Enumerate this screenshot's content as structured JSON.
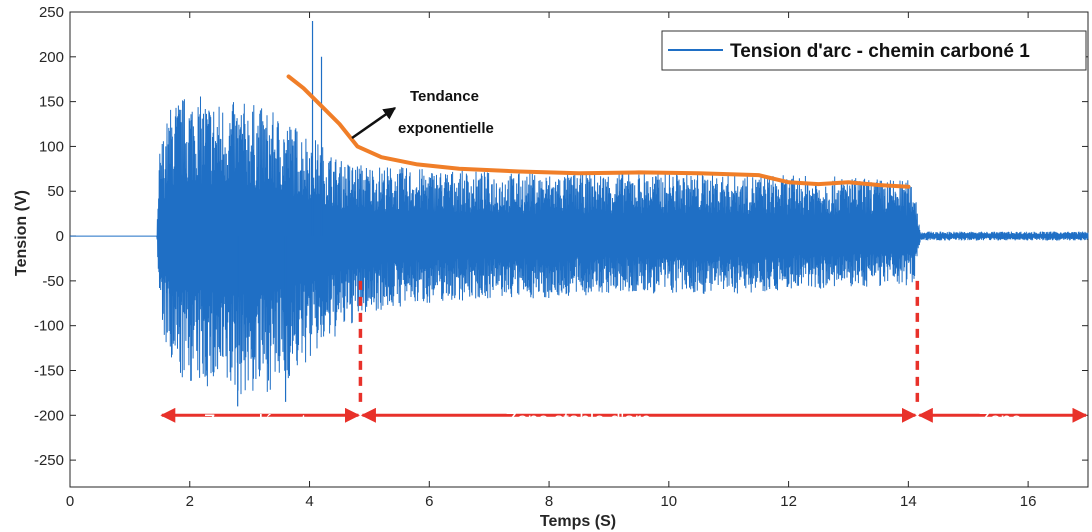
{
  "chart_data": {
    "type": "line",
    "xlabel": "Temps (S)",
    "ylabel": "Tension (V)",
    "xlim": [
      0,
      17
    ],
    "ylim": [
      -280,
      250
    ],
    "xticks": [
      0,
      2,
      4,
      6,
      8,
      10,
      12,
      14,
      16
    ],
    "yticks": [
      250,
      200,
      150,
      100,
      50,
      0,
      -50,
      -100,
      -150,
      -200,
      -250
    ],
    "xtick_labels": [
      "0",
      "2",
      "4",
      "6",
      "8",
      "10",
      "12",
      "14",
      "16"
    ],
    "ytick_labels": [
      "250",
      "200",
      "150",
      "100",
      "50",
      "0",
      "-50",
      "-100",
      "-150",
      "-200",
      "-250"
    ],
    "grid": false,
    "legend": {
      "position": "top-right",
      "entry": "Tension d'arc - chemin carboné 1"
    },
    "series": [
      {
        "name": "Tension d'arc - chemin carboné 1",
        "color": "#1f6fc5",
        "style": "signal-envelope",
        "x": [
          0,
          1.45,
          1.5,
          1.7,
          2.0,
          2.5,
          3.0,
          3.5,
          4.0,
          4.5,
          5.0,
          6.0,
          7.0,
          8.0,
          9.0,
          10.0,
          11.0,
          12.0,
          13.0,
          14.0,
          14.1,
          14.2,
          15.0,
          16.0,
          17.0
        ],
        "upper": [
          0,
          0,
          100,
          150,
          160,
          150,
          150,
          135,
          115,
          85,
          80,
          75,
          72,
          70,
          72,
          72,
          70,
          68,
          66,
          63,
          60,
          5,
          5,
          5,
          5
        ],
        "lower": [
          0,
          0,
          -90,
          -160,
          -165,
          -175,
          -180,
          -170,
          -140,
          -110,
          -85,
          -75,
          -70,
          -70,
          -65,
          -65,
          -65,
          -60,
          -58,
          -55,
          -50,
          -5,
          -5,
          -5,
          -5
        ],
        "spikes": [
          {
            "x": 4.05,
            "y": 240
          },
          {
            "x": 4.2,
            "y": 200
          },
          {
            "x": 2.8,
            "y": -190
          },
          {
            "x": 3.6,
            "y": -185
          }
        ]
      },
      {
        "name": "Tendance exponentielle",
        "color": "#f07e28",
        "style": "trend",
        "x": [
          3.65,
          3.9,
          4.2,
          4.5,
          4.8,
          5.2,
          5.8,
          6.5,
          7.5,
          8.5,
          9.5,
          10.5,
          11.5,
          12.0,
          12.5,
          13.0,
          13.5,
          14.0
        ],
        "y": [
          178,
          165,
          145,
          125,
          100,
          88,
          80,
          75,
          72,
          70,
          71,
          70,
          68,
          60,
          58,
          60,
          57,
          55
        ]
      }
    ],
    "annotations": {
      "trend_label_line1": "Tendance",
      "trend_label_line2": "exponentielle",
      "zone1_line1": "Zone départ",
      "zone1_line2": "d'arc",
      "zone2": "Zone  stable d'arc",
      "zone3_line1": "Zone",
      "zone3_line2": "d'extinction d'arc",
      "markers_x": [
        4.85,
        14.15
      ],
      "ranges": [
        [
          1.5,
          4.85
        ],
        [
          4.85,
          14.15
        ],
        [
          14.15,
          17.0
        ]
      ],
      "zone_y": -200,
      "marker_top_y": -50,
      "marker_bottom_y": -190,
      "arrow_color": "#e8312a",
      "zone_text_color": "#ffffff"
    }
  }
}
